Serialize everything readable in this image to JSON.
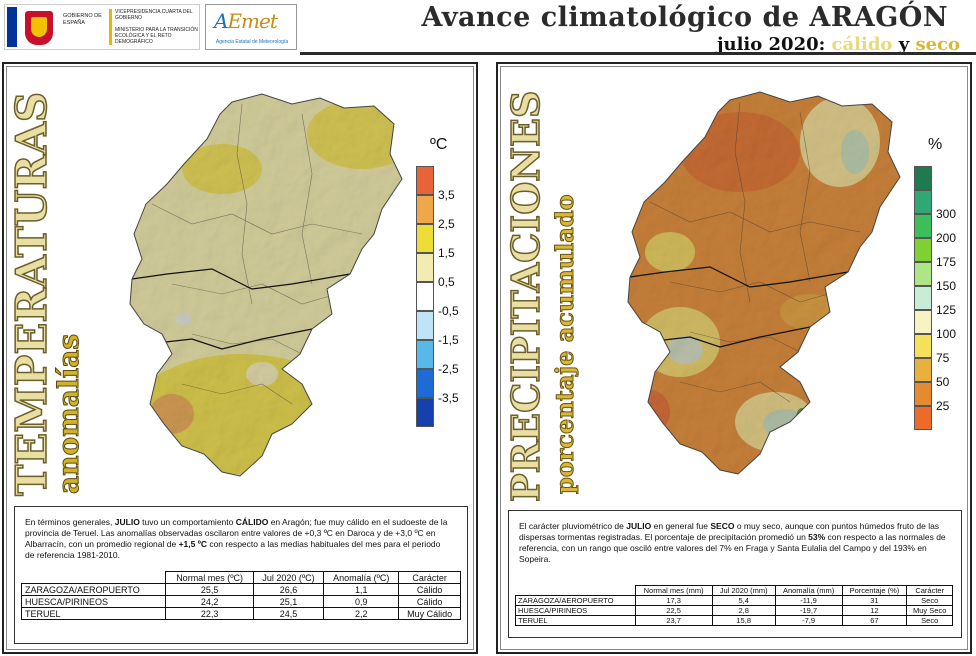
{
  "header": {
    "gov_text": "Vicepresidencia Cuarta del Gobierno",
    "gov_country": "Gobierno de España",
    "ministry_text": "Ministerio para la Transición Ecológica y el Reto Demográfico",
    "aemet_word_a": "A",
    "aemet_word_b": "Emet",
    "aemet_sub": "Agencia Estatal de Meteorología",
    "title": "Avance climatológico de ARAGÓN",
    "subtitle_prefix": "julio 2020: ",
    "subtitle_w1": "cálido",
    "subtitle_mid": " y ",
    "subtitle_w2": "seco"
  },
  "temperature_panel": {
    "vertical_title": "TEMPERATURAS",
    "vertical_subtitle": "anomalías",
    "legend_title": "ºC",
    "legend": [
      {
        "label": "3,5",
        "color": "#e8623a"
      },
      {
        "label": "2,5",
        "color": "#f0a64a"
      },
      {
        "label": "1,5",
        "color": "#eedc38"
      },
      {
        "label": "0,5",
        "color": "#f3ecb0"
      },
      {
        "label": "-0,5",
        "color": "#ffffff"
      },
      {
        "label": "-1,5",
        "color": "#bfe4f5"
      },
      {
        "label": "-2,5",
        "color": "#59b8ea"
      },
      {
        "label": "-3,5",
        "color": "#1d6bd5"
      },
      {
        "label": "",
        "color": "#1440b0"
      }
    ],
    "description_parts": {
      "p1": "En términos generales, ",
      "b1": "JULIO",
      "p2": " tuvo un comportamiento ",
      "b2": "CÁLIDO",
      "p3": " en Aragón; fue muy cálido en el sudoeste de la provincia de Teruel. Las anomalías observadas oscilaron entre valores de +0,3 ºC en Daroca y de +3,0 ºC en Albarracín, con un promedio regional de ",
      "b3": "+1,5 ºC",
      "p4": " con respecto a las medias habituales del mes para el periodo de referencia 1981-2010."
    },
    "table": {
      "headers": [
        "Normal mes (ºC)",
        "Jul 2020 (ºC)",
        "Anomalía (ºC)",
        "Carácter"
      ],
      "rows": [
        [
          "ZARAGOZA/AEROPUERTO",
          "25,5",
          "26,6",
          "1,1",
          "Cálido"
        ],
        [
          "HUESCA/PIRINEOS",
          "24,2",
          "25,1",
          "0,9",
          "Cálido"
        ],
        [
          "TERUEL",
          "22,3",
          "24,5",
          "2,2",
          "Muy Cálido"
        ]
      ]
    }
  },
  "precip_panel": {
    "vertical_title": "PRECIPITACIONES",
    "vertical_subtitle": "porcentaje acumulado",
    "legend_title": "%",
    "legend": [
      {
        "label": "",
        "color": "#1f7a52"
      },
      {
        "label": "300",
        "color": "#2fa874"
      },
      {
        "label": "200",
        "color": "#3cbf58"
      },
      {
        "label": "175",
        "color": "#7fd032"
      },
      {
        "label": "150",
        "color": "#aee586"
      },
      {
        "label": "125",
        "color": "#c9ecd6"
      },
      {
        "label": "100",
        "color": "#f6f3c4"
      },
      {
        "label": "75",
        "color": "#f4e05a"
      },
      {
        "label": "50",
        "color": "#e8b03c"
      },
      {
        "label": "25",
        "color": "#e58a2f"
      },
      {
        "label": "",
        "color": "#ee6a2a"
      }
    ],
    "description_parts": {
      "p1": "El carácter pluviométrico de ",
      "b1": "JULIO",
      "p2": " en general fue ",
      "b2": "SECO",
      "p3": " o muy seco, aunque con puntos húmedos fruto de las dispersas tormentas registradas. El porcentaje de precipitación promedió un ",
      "b3": "53%",
      "p4": " con respecto a las normales de referencia, con un rango que osciló entre valores del 7% en Fraga y Santa Eulalia del Campo y del 193% en Sopeira."
    },
    "table": {
      "headers": [
        "Normal mes (mm)",
        "Jul 2020 (mm)",
        "Anomalía (mm)",
        "Porcentaje (%)",
        "Carácter"
      ],
      "rows": [
        [
          "ZARAGOZA/AEROPUERTO",
          "17,3",
          "5,4",
          "-11,9",
          "31",
          "Seco"
        ],
        [
          "HUESCA/PIRINEOS",
          "22,5",
          "2,8",
          "-19,7",
          "12",
          "Muy Seco"
        ],
        [
          "TERUEL",
          "23,7",
          "15,8",
          "-7,9",
          "67",
          "Seco"
        ]
      ]
    }
  }
}
